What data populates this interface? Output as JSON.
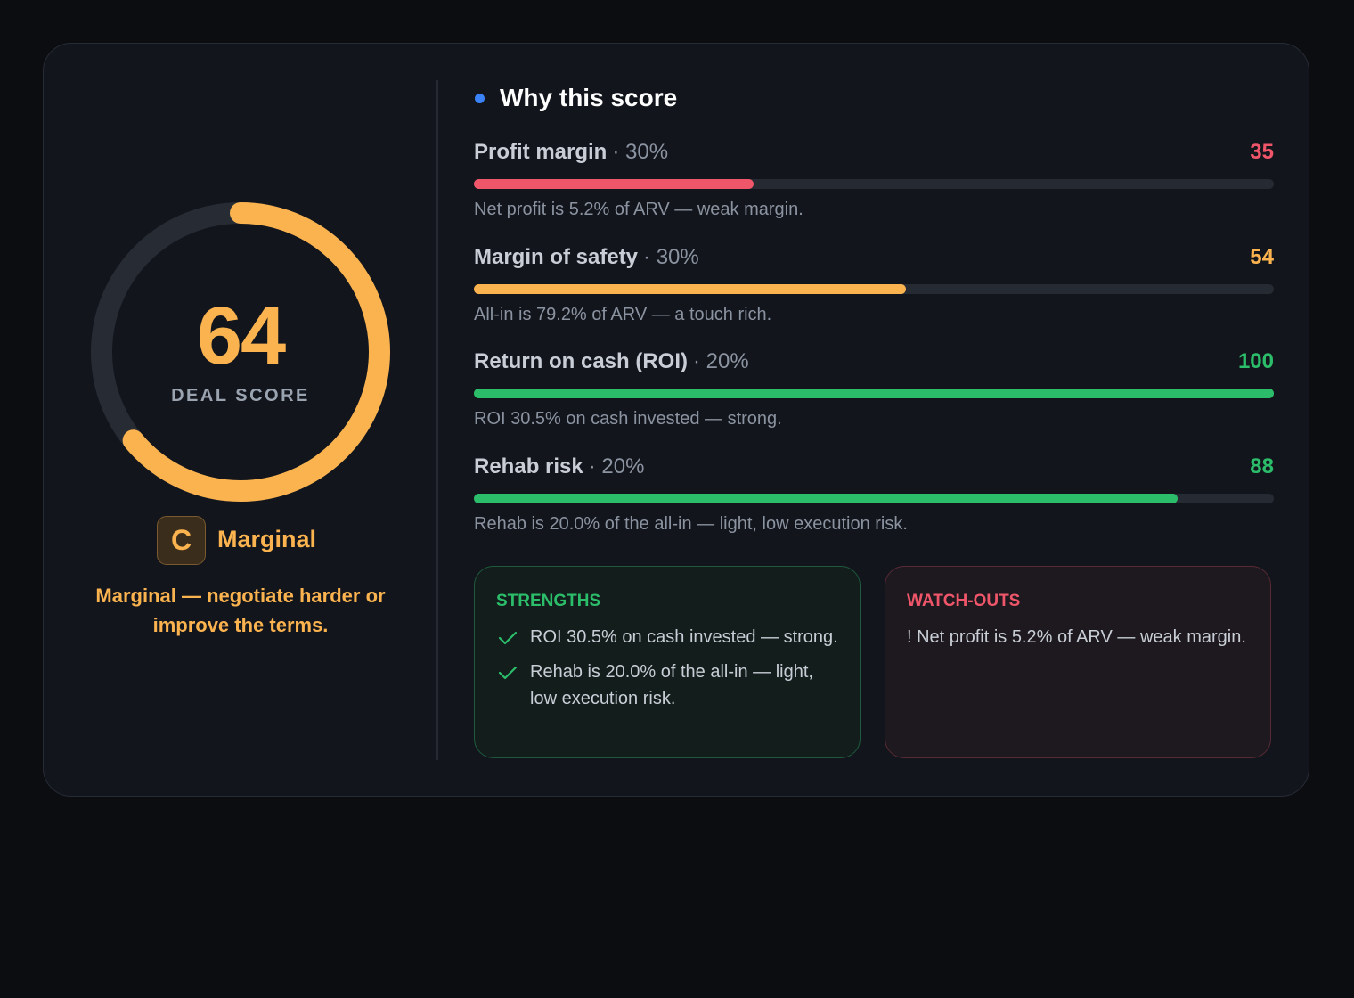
{
  "score": {
    "value": 64,
    "range": [
      0,
      100
    ],
    "label": "DEAL SCORE",
    "color": "#fbb34f",
    "track_color": "#262b34"
  },
  "grade": {
    "letter": "C",
    "name": "Marginal",
    "advice": "Marginal — negotiate harder or improve the terms."
  },
  "breakdown": {
    "title": "Why this score",
    "range": [
      0,
      100
    ],
    "factors": [
      {
        "name": "Profit margin",
        "weight": "· 30%",
        "score": 35,
        "color": "#f0566a",
        "note": "Net profit is 5.2% of ARV — weak margin."
      },
      {
        "name": "Margin of safety",
        "weight": "· 30%",
        "score": 54,
        "color": "#fbb34f",
        "note": "All-in is 79.2% of ARV — a touch rich."
      },
      {
        "name": "Return on cash (ROI)",
        "weight": "· 20%",
        "score": 100,
        "color": "#2cbd6a",
        "note": "ROI 30.5% on cash invested — strong."
      },
      {
        "name": "Rehab risk",
        "weight": "· 20%",
        "score": 88,
        "color": "#2cbd6a",
        "note": "Rehab is 20.0% of the all-in — light, low execution risk."
      }
    ]
  },
  "strengths": {
    "title": "STRENGTHS",
    "items": [
      "ROI 30.5% on cash invested — strong.",
      "Rehab is 20.0% of the all-in — light, low execution risk."
    ]
  },
  "watch_outs": {
    "title": "WATCH-OUTS",
    "items": [
      "! Net profit is 5.2% of ARV — weak margin."
    ]
  }
}
